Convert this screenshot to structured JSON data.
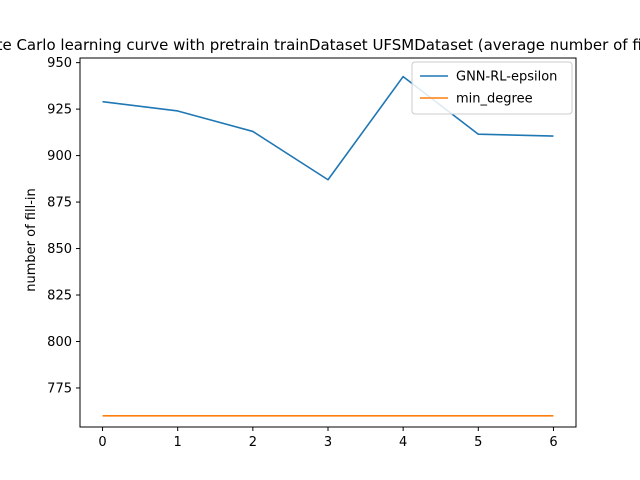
{
  "chart_data": {
    "type": "line",
    "title": "Monte Carlo learning curve with pretrain trainDataset UFSMDataset (average number of fill-in)",
    "xlabel": "",
    "ylabel": "number of fill-in",
    "x": [
      0,
      1,
      2,
      3,
      4,
      5,
      6
    ],
    "xlim": [
      -0.3,
      6.3
    ],
    "ylim": [
      754.0,
      952.5
    ],
    "x_ticks": [
      0,
      1,
      2,
      3,
      4,
      5,
      6
    ],
    "y_ticks": [
      775,
      800,
      825,
      850,
      875,
      900,
      925,
      950
    ],
    "grid": false,
    "legend_position": "top-right",
    "series": [
      {
        "name": "GNN-RL-epsilon",
        "color": "#1f77b4",
        "values": [
          929,
          924,
          913,
          887,
          942.5,
          911.5,
          910.5
        ]
      },
      {
        "name": "min_degree",
        "color": "#ff7f0e",
        "values": [
          760,
          760,
          760,
          760,
          760,
          760,
          760
        ]
      }
    ]
  }
}
